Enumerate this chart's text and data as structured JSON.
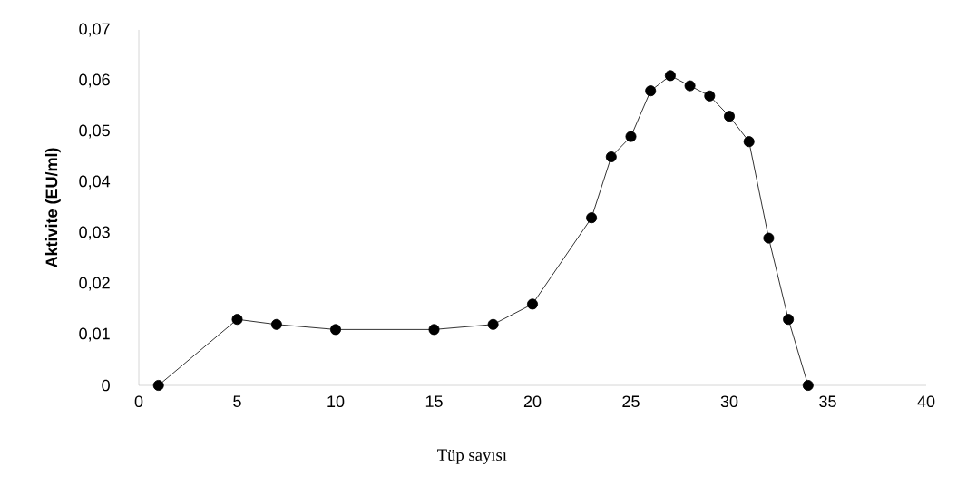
{
  "chart_data": {
    "type": "line",
    "xlabel": "Tüp sayısı",
    "ylabel": "Aktivite (EU/ml)",
    "x": [
      1,
      5,
      7,
      10,
      15,
      18,
      20,
      23,
      24,
      25,
      26,
      27,
      28,
      29,
      30,
      31,
      32,
      33,
      34
    ],
    "values": [
      0,
      0.013,
      0.012,
      0.011,
      0.011,
      0.012,
      0.016,
      0.033,
      0.045,
      0.049,
      0.058,
      0.061,
      0.059,
      0.057,
      0.053,
      0.048,
      0.029,
      0.013,
      0
    ],
    "color": "#000000",
    "marker": "circle",
    "line_style": "solid",
    "xlim": [
      0,
      40
    ],
    "xticks": [
      0,
      5,
      10,
      15,
      20,
      25,
      30,
      35,
      40
    ],
    "ylim": [
      0,
      0.07
    ],
    "yticks": [
      {
        "value": 0,
        "label": "0"
      },
      {
        "value": 0.01,
        "label": "0,01"
      },
      {
        "value": 0.02,
        "label": "0,02"
      },
      {
        "value": 0.03,
        "label": "0,03"
      },
      {
        "value": 0.04,
        "label": "0,04"
      },
      {
        "value": 0.05,
        "label": "0,05"
      },
      {
        "value": 0.06,
        "label": "0,06"
      },
      {
        "value": 0.07,
        "label": "0,07"
      }
    ]
  }
}
